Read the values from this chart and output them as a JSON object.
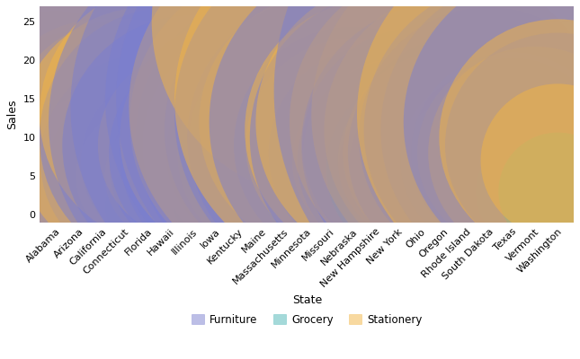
{
  "states": [
    "Alabama",
    "Arizona",
    "California",
    "Connecticut",
    "Florida",
    "Hawaii",
    "Illinois",
    "Iowa",
    "Kentucky",
    "Maine",
    "Massachusetts",
    "Minnesota",
    "Missouri",
    "Nebraska",
    "New Hampshire",
    "New York",
    "Ohio",
    "Oregon",
    "Rhode Island",
    "South Dakota",
    "Texas",
    "Vermont",
    "Washington"
  ],
  "categories": [
    "Furniture",
    "Grocery",
    "Stationery"
  ],
  "colors": {
    "Furniture": "#7b7fcf",
    "Grocery": "#4ab5b5",
    "Stationery": "#f2b443"
  },
  "alpha": 0.5,
  "bubbles": [
    {
      "state": "Alabama",
      "category": "Furniture",
      "sales": 11,
      "r": 22
    },
    {
      "state": "Alabama",
      "category": "Furniture",
      "sales": 8,
      "r": 16
    },
    {
      "state": "Alabama",
      "category": "Grocery",
      "sales": 1,
      "r": 8
    },
    {
      "state": "Alabama",
      "category": "Stationery",
      "sales": 6,
      "r": 12
    },
    {
      "state": "Alabama",
      "category": "Stationery",
      "sales": 11,
      "r": 20
    },
    {
      "state": "Arizona",
      "category": "Furniture",
      "sales": 12,
      "r": 24
    },
    {
      "state": "Arizona",
      "category": "Furniture",
      "sales": 8,
      "r": 16
    },
    {
      "state": "Arizona",
      "category": "Grocery",
      "sales": 1,
      "r": 7
    },
    {
      "state": "Arizona",
      "category": "Stationery",
      "sales": 10,
      "r": 18
    },
    {
      "state": "Arizona",
      "category": "Stationery",
      "sales": 6,
      "r": 12
    },
    {
      "state": "California",
      "category": "Furniture",
      "sales": 14,
      "r": 32
    },
    {
      "state": "California",
      "category": "Furniture",
      "sales": 11,
      "r": 24
    },
    {
      "state": "California",
      "category": "Furniture",
      "sales": 8,
      "r": 16
    },
    {
      "state": "California",
      "category": "Grocery",
      "sales": 2,
      "r": 9
    },
    {
      "state": "California",
      "category": "Grocery",
      "sales": 1,
      "r": 7
    },
    {
      "state": "California",
      "category": "Stationery",
      "sales": 15,
      "r": 28
    },
    {
      "state": "California",
      "category": "Stationery",
      "sales": 10,
      "r": 20
    },
    {
      "state": "California",
      "category": "Stationery",
      "sales": 6,
      "r": 13
    },
    {
      "state": "Connecticut",
      "category": "Furniture",
      "sales": 11,
      "r": 26
    },
    {
      "state": "Connecticut",
      "category": "Furniture",
      "sales": 8,
      "r": 18
    },
    {
      "state": "Connecticut",
      "category": "Furniture",
      "sales": 5,
      "r": 12
    },
    {
      "state": "Connecticut",
      "category": "Grocery",
      "sales": 2,
      "r": 9
    },
    {
      "state": "Connecticut",
      "category": "Grocery",
      "sales": 1,
      "r": 6
    },
    {
      "state": "Connecticut",
      "category": "Stationery",
      "sales": 14,
      "r": 28
    },
    {
      "state": "Connecticut",
      "category": "Stationery",
      "sales": 10,
      "r": 20
    },
    {
      "state": "Connecticut",
      "category": "Stationery",
      "sales": 6,
      "r": 13
    },
    {
      "state": "Florida",
      "category": "Furniture",
      "sales": 11,
      "r": 30
    },
    {
      "state": "Florida",
      "category": "Furniture",
      "sales": 7,
      "r": 18
    },
    {
      "state": "Florida",
      "category": "Grocery",
      "sales": 1,
      "r": 7
    },
    {
      "state": "Florida",
      "category": "Stationery",
      "sales": 10,
      "r": 22
    },
    {
      "state": "Florida",
      "category": "Stationery",
      "sales": 5,
      "r": 12
    },
    {
      "state": "Hawaii",
      "category": "Furniture",
      "sales": 10,
      "r": 22
    },
    {
      "state": "Hawaii",
      "category": "Furniture",
      "sales": 7,
      "r": 15
    },
    {
      "state": "Hawaii",
      "category": "Grocery",
      "sales": 1,
      "r": 7
    },
    {
      "state": "Hawaii",
      "category": "Stationery",
      "sales": 13,
      "r": 22
    },
    {
      "state": "Hawaii",
      "category": "Stationery",
      "sales": 5,
      "r": 11
    },
    {
      "state": "Illinois",
      "category": "Furniture",
      "sales": 9,
      "r": 22
    },
    {
      "state": "Illinois",
      "category": "Furniture",
      "sales": 6,
      "r": 14
    },
    {
      "state": "Illinois",
      "category": "Grocery",
      "sales": 2,
      "r": 9
    },
    {
      "state": "Illinois",
      "category": "Grocery",
      "sales": 1,
      "r": 6
    },
    {
      "state": "Illinois",
      "category": "Stationery",
      "sales": 9,
      "r": 16
    },
    {
      "state": "Illinois",
      "category": "Stationery",
      "sales": 4,
      "r": 9
    },
    {
      "state": "Iowa",
      "category": "Furniture",
      "sales": 8,
      "r": 18
    },
    {
      "state": "Iowa",
      "category": "Grocery",
      "sales": 1,
      "r": 7
    },
    {
      "state": "Iowa",
      "category": "Stationery",
      "sales": 5,
      "r": 10
    },
    {
      "state": "Kentucky",
      "category": "Furniture",
      "sales": 12,
      "r": 32
    },
    {
      "state": "Kentucky",
      "category": "Furniture",
      "sales": 8,
      "r": 20
    },
    {
      "state": "Kentucky",
      "category": "Furniture",
      "sales": 4,
      "r": 12
    },
    {
      "state": "Kentucky",
      "category": "Grocery",
      "sales": 3,
      "r": 10
    },
    {
      "state": "Kentucky",
      "category": "Grocery",
      "sales": 1,
      "r": 6
    },
    {
      "state": "Kentucky",
      "category": "Stationery",
      "sales": 10,
      "r": 20
    },
    {
      "state": "Kentucky",
      "category": "Stationery",
      "sales": 5,
      "r": 12
    },
    {
      "state": "Maine",
      "category": "Furniture",
      "sales": 9,
      "r": 20
    },
    {
      "state": "Maine",
      "category": "Furniture",
      "sales": 5,
      "r": 12
    },
    {
      "state": "Maine",
      "category": "Grocery",
      "sales": 2,
      "r": 8
    },
    {
      "state": "Maine",
      "category": "Grocery",
      "sales": 1,
      "r": 6
    },
    {
      "state": "Maine",
      "category": "Stationery",
      "sales": 8,
      "r": 16
    },
    {
      "state": "Maine",
      "category": "Stationery",
      "sales": 4,
      "r": 10
    },
    {
      "state": "Massachusetts",
      "category": "Furniture",
      "sales": 14,
      "r": 36
    },
    {
      "state": "Massachusetts",
      "category": "Furniture",
      "sales": 10,
      "r": 25
    },
    {
      "state": "Massachusetts",
      "category": "Furniture",
      "sales": 6,
      "r": 16
    },
    {
      "state": "Massachusetts",
      "category": "Furniture",
      "sales": 2,
      "r": 10
    },
    {
      "state": "Massachusetts",
      "category": "Grocery",
      "sales": 1,
      "r": 6
    },
    {
      "state": "Massachusetts",
      "category": "Stationery",
      "sales": 12,
      "r": 26
    },
    {
      "state": "Massachusetts",
      "category": "Stationery",
      "sales": 8,
      "r": 18
    },
    {
      "state": "Massachusetts",
      "category": "Stationery",
      "sales": 4,
      "r": 11
    },
    {
      "state": "Minnesota",
      "category": "Furniture",
      "sales": 15,
      "r": 34
    },
    {
      "state": "Minnesota",
      "category": "Furniture",
      "sales": 11,
      "r": 24
    },
    {
      "state": "Minnesota",
      "category": "Furniture",
      "sales": 8,
      "r": 17
    },
    {
      "state": "Minnesota",
      "category": "Grocery",
      "sales": 1,
      "r": 6
    },
    {
      "state": "Minnesota",
      "category": "Stationery",
      "sales": 14,
      "r": 30
    },
    {
      "state": "Minnesota",
      "category": "Stationery",
      "sales": 9,
      "r": 20
    },
    {
      "state": "Missouri",
      "category": "Furniture",
      "sales": 15,
      "r": 36
    },
    {
      "state": "Missouri",
      "category": "Furniture",
      "sales": 10,
      "r": 24
    },
    {
      "state": "Missouri",
      "category": "Grocery",
      "sales": 3,
      "r": 11
    },
    {
      "state": "Missouri",
      "category": "Grocery",
      "sales": 1,
      "r": 7
    },
    {
      "state": "Missouri",
      "category": "Stationery",
      "sales": 25,
      "r": 30
    },
    {
      "state": "Missouri",
      "category": "Stationery",
      "sales": 12,
      "r": 22
    },
    {
      "state": "Nebraska",
      "category": "Furniture",
      "sales": 13,
      "r": 30
    },
    {
      "state": "Nebraska",
      "category": "Furniture",
      "sales": 9,
      "r": 20
    },
    {
      "state": "Nebraska",
      "category": "Grocery",
      "sales": 3,
      "r": 10
    },
    {
      "state": "Nebraska",
      "category": "Grocery",
      "sales": 1,
      "r": 6
    },
    {
      "state": "Nebraska",
      "category": "Stationery",
      "sales": 15,
      "r": 30
    },
    {
      "state": "Nebraska",
      "category": "Stationery",
      "sales": 9,
      "r": 18
    },
    {
      "state": "New Hampshire",
      "category": "Furniture",
      "sales": 12,
      "r": 28
    },
    {
      "state": "New Hampshire",
      "category": "Furniture",
      "sales": 8,
      "r": 18
    },
    {
      "state": "New Hampshire",
      "category": "Grocery",
      "sales": 2,
      "r": 8
    },
    {
      "state": "New Hampshire",
      "category": "Grocery",
      "sales": 1,
      "r": 6
    },
    {
      "state": "New Hampshire",
      "category": "Stationery",
      "sales": 11,
      "r": 22
    },
    {
      "state": "New Hampshire",
      "category": "Stationery",
      "sales": 7,
      "r": 14
    },
    {
      "state": "New York",
      "category": "Furniture",
      "sales": 10,
      "r": 25
    },
    {
      "state": "New York",
      "category": "Furniture",
      "sales": 7,
      "r": 17
    },
    {
      "state": "New York",
      "category": "Grocery",
      "sales": 5,
      "r": 13
    },
    {
      "state": "New York",
      "category": "Grocery",
      "sales": 1,
      "r": 6
    },
    {
      "state": "New York",
      "category": "Stationery",
      "sales": 12,
      "r": 24
    },
    {
      "state": "New York",
      "category": "Stationery",
      "sales": 8,
      "r": 16
    },
    {
      "state": "Ohio",
      "category": "Furniture",
      "sales": 9,
      "r": 20
    },
    {
      "state": "Ohio",
      "category": "Furniture",
      "sales": 6,
      "r": 14
    },
    {
      "state": "Ohio",
      "category": "Grocery",
      "sales": 6,
      "r": 16
    },
    {
      "state": "Ohio",
      "category": "Grocery",
      "sales": 3,
      "r": 10
    },
    {
      "state": "Ohio",
      "category": "Grocery",
      "sales": 1,
      "r": 6
    },
    {
      "state": "Ohio",
      "category": "Stationery",
      "sales": 7,
      "r": 14
    },
    {
      "state": "Ohio",
      "category": "Stationery",
      "sales": 5,
      "r": 10
    },
    {
      "state": "Oregon",
      "category": "Furniture",
      "sales": 9,
      "r": 24
    },
    {
      "state": "Oregon",
      "category": "Furniture",
      "sales": 6,
      "r": 16
    },
    {
      "state": "Oregon",
      "category": "Grocery",
      "sales": 2,
      "r": 8
    },
    {
      "state": "Oregon",
      "category": "Grocery",
      "sales": 1,
      "r": 6
    },
    {
      "state": "Oregon",
      "category": "Stationery",
      "sales": 12,
      "r": 26
    },
    {
      "state": "Oregon",
      "category": "Stationery",
      "sales": 8,
      "r": 17
    },
    {
      "state": "Rhode Island",
      "category": "Furniture",
      "sales": 8,
      "r": 20
    },
    {
      "state": "Rhode Island",
      "category": "Furniture",
      "sales": 5,
      "r": 13
    },
    {
      "state": "Rhode Island",
      "category": "Grocery",
      "sales": 1,
      "r": 6
    },
    {
      "state": "Rhode Island",
      "category": "Stationery",
      "sales": 11,
      "r": 24
    },
    {
      "state": "Rhode Island",
      "category": "Stationery",
      "sales": 5,
      "r": 13
    },
    {
      "state": "South Dakota",
      "category": "Furniture",
      "sales": 10,
      "r": 22
    },
    {
      "state": "South Dakota",
      "category": "Furniture",
      "sales": 7,
      "r": 15
    },
    {
      "state": "South Dakota",
      "category": "Grocery",
      "sales": 1,
      "r": 6
    },
    {
      "state": "South Dakota",
      "category": "Stationery",
      "sales": 13,
      "r": 30
    },
    {
      "state": "South Dakota",
      "category": "Stationery",
      "sales": 1,
      "r": 8
    },
    {
      "state": "Texas",
      "category": "Furniture",
      "sales": 11,
      "r": 25
    },
    {
      "state": "Texas",
      "category": "Furniture",
      "sales": 8,
      "r": 17
    },
    {
      "state": "Texas",
      "category": "Grocery",
      "sales": 2,
      "r": 8
    },
    {
      "state": "Texas",
      "category": "Grocery",
      "sales": 1,
      "r": 6
    },
    {
      "state": "Texas",
      "category": "Stationery",
      "sales": 8,
      "r": 16
    },
    {
      "state": "Texas",
      "category": "Stationery",
      "sales": 5,
      "r": 10
    },
    {
      "state": "Vermont",
      "category": "Furniture",
      "sales": 16,
      "r": 44
    },
    {
      "state": "Vermont",
      "category": "Furniture",
      "sales": 11,
      "r": 26
    },
    {
      "state": "Vermont",
      "category": "Grocery",
      "sales": 3,
      "r": 10
    },
    {
      "state": "Vermont",
      "category": "Stationery",
      "sales": 13,
      "r": 30
    },
    {
      "state": "Vermont",
      "category": "Stationery",
      "sales": 8,
      "r": 18
    },
    {
      "state": "Washington",
      "category": "Furniture",
      "sales": 12,
      "r": 26
    },
    {
      "state": "Washington",
      "category": "Furniture",
      "sales": 9,
      "r": 19
    },
    {
      "state": "Washington",
      "category": "Grocery",
      "sales": 3,
      "r": 10
    },
    {
      "state": "Washington",
      "category": "Stationery",
      "sales": 10,
      "r": 20
    },
    {
      "state": "Washington",
      "category": "Stationery",
      "sales": 7,
      "r": 13
    }
  ],
  "xlabel": "State",
  "ylabel": "Sales",
  "ylim": [
    -1,
    27
  ],
  "yticks": [
    0,
    5,
    10,
    15,
    20,
    25
  ],
  "bg_color": "#ffffff",
  "grid_color": "#e0e0e0",
  "legend_labels": [
    "Furniture",
    "Grocery",
    "Stationery"
  ]
}
